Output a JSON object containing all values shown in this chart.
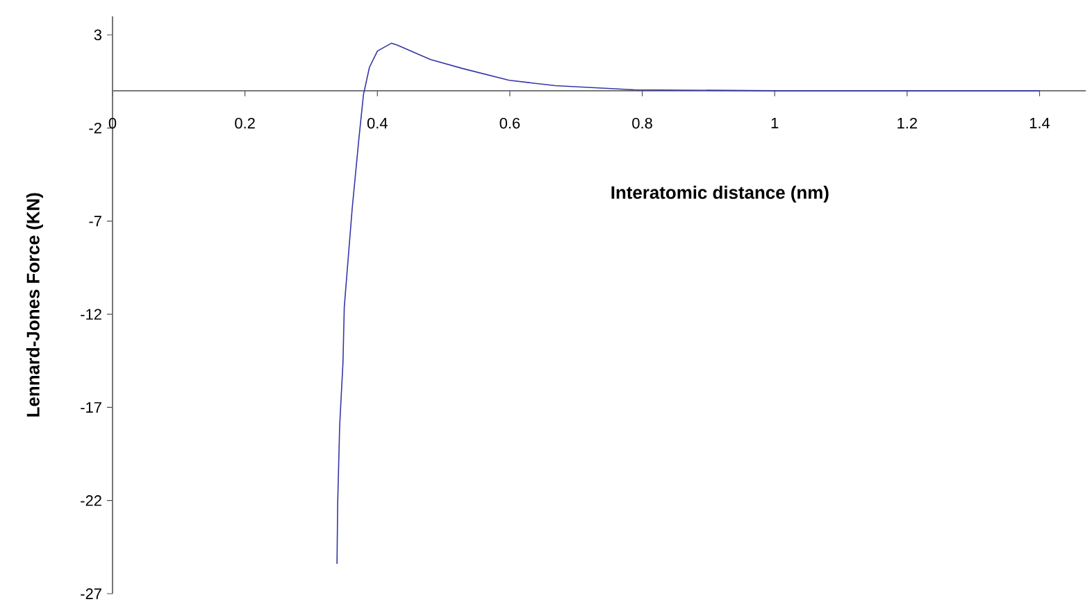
{
  "chart_data": {
    "type": "line",
    "xlabel": "Interatomic distance (nm)",
    "ylabel": "Lennard-Jones Force (KN)",
    "xlim": [
      0,
      1.47
    ],
    "ylim": [
      -27,
      4
    ],
    "xticks": [
      0,
      0.2,
      0.4,
      0.6,
      0.8,
      1,
      1.2,
      1.4
    ],
    "yticks": [
      3,
      -2,
      -7,
      -12,
      -17,
      -22,
      -27
    ],
    "series": [
      {
        "color": "#3535a8",
        "x": [
          0.339,
          0.34,
          0.343,
          0.348,
          0.35,
          0.362,
          0.372,
          0.379,
          0.388,
          0.4,
          0.421,
          0.43,
          0.48,
          0.529,
          0.599,
          0.669,
          0.788,
          1.0,
          1.2,
          1.4
        ],
        "values": [
          -25.4,
          -22.2,
          -18.0,
          -14.6,
          -11.6,
          -6.3,
          -2.6,
          -0.2,
          1.26,
          2.13,
          2.55,
          2.45,
          1.68,
          1.19,
          0.56,
          0.27,
          0.05,
          0,
          0,
          0
        ]
      }
    ]
  }
}
